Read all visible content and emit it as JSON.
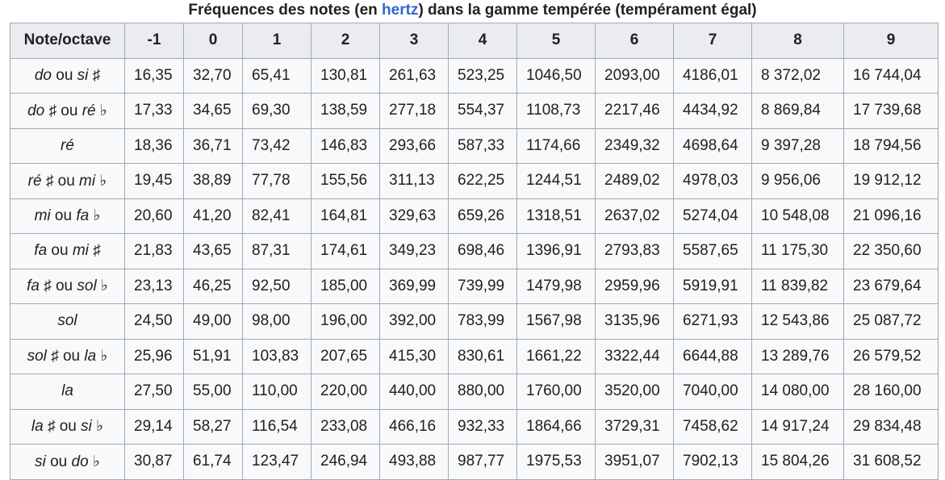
{
  "caption": {
    "before": "Fréquences des notes (en ",
    "link": "hertz",
    "after": ") dans la gamme tempérée (tempérament égal)"
  },
  "headers": [
    "Note/octave",
    "-1",
    "0",
    "1",
    "2",
    "3",
    "4",
    "5",
    "6",
    "7",
    "8",
    "9"
  ],
  "rows": [
    {
      "note": [
        {
          "t": "do",
          "i": true
        },
        {
          "t": " ou ",
          "i": false
        },
        {
          "t": "si ♯",
          "i": true
        }
      ],
      "values": [
        "16,35",
        "32,70",
        "65,41",
        "130,81",
        "261,63",
        "523,25",
        "1046,50",
        "2093,00",
        "4186,01",
        "8 372,02",
        "16 744,04"
      ]
    },
    {
      "note": [
        {
          "t": "do ♯",
          "i": true
        },
        {
          "t": " ou ",
          "i": false
        },
        {
          "t": "ré ♭",
          "i": true
        }
      ],
      "values": [
        "17,33",
        "34,65",
        "69,30",
        "138,59",
        "277,18",
        "554,37",
        "1108,73",
        "2217,46",
        "4434,92",
        "8 869,84",
        "17 739,68"
      ]
    },
    {
      "note": [
        {
          "t": "ré",
          "i": true
        }
      ],
      "values": [
        "18,36",
        "36,71",
        "73,42",
        "146,83",
        "293,66",
        "587,33",
        "1174,66",
        "2349,32",
        "4698,64",
        "9 397,28",
        "18 794,56"
      ]
    },
    {
      "note": [
        {
          "t": "ré ♯",
          "i": true
        },
        {
          "t": " ou ",
          "i": false
        },
        {
          "t": "mi ♭",
          "i": true
        }
      ],
      "values": [
        "19,45",
        "38,89",
        "77,78",
        "155,56",
        "311,13",
        "622,25",
        "1244,51",
        "2489,02",
        "4978,03",
        "9 956,06",
        "19 912,12"
      ]
    },
    {
      "note": [
        {
          "t": "mi",
          "i": true
        },
        {
          "t": " ou ",
          "i": false
        },
        {
          "t": "fa ♭",
          "i": true
        }
      ],
      "values": [
        "20,60",
        "41,20",
        "82,41",
        "164,81",
        "329,63",
        "659,26",
        "1318,51",
        "2637,02",
        "5274,04",
        "10 548,08",
        "21 096,16"
      ]
    },
    {
      "note": [
        {
          "t": "fa",
          "i": true
        },
        {
          "t": " ou ",
          "i": false
        },
        {
          "t": "mi ♯",
          "i": true
        }
      ],
      "values": [
        "21,83",
        "43,65",
        "87,31",
        "174,61",
        "349,23",
        "698,46",
        "1396,91",
        "2793,83",
        "5587,65",
        "11 175,30",
        "22 350,60"
      ]
    },
    {
      "note": [
        {
          "t": "fa ♯",
          "i": true
        },
        {
          "t": " ou ",
          "i": false
        },
        {
          "t": "sol ♭",
          "i": true
        }
      ],
      "values": [
        "23,13",
        "46,25",
        "92,50",
        "185,00",
        "369,99",
        "739,99",
        "1479,98",
        "2959,96",
        "5919,91",
        "11 839,82",
        "23 679,64"
      ]
    },
    {
      "note": [
        {
          "t": "sol",
          "i": true
        }
      ],
      "values": [
        "24,50",
        "49,00",
        "98,00",
        "196,00",
        "392,00",
        "783,99",
        "1567,98",
        "3135,96",
        "6271,93",
        "12 543,86",
        "25 087,72"
      ]
    },
    {
      "note": [
        {
          "t": "sol ♯",
          "i": true
        },
        {
          "t": " ou ",
          "i": false
        },
        {
          "t": "la ♭",
          "i": true
        }
      ],
      "values": [
        "25,96",
        "51,91",
        "103,83",
        "207,65",
        "415,30",
        "830,61",
        "1661,22",
        "3322,44",
        "6644,88",
        "13 289,76",
        "26 579,52"
      ]
    },
    {
      "note": [
        {
          "t": "la",
          "i": true
        }
      ],
      "values": [
        "27,50",
        "55,00",
        "110,00",
        "220,00",
        "440,00",
        "880,00",
        "1760,00",
        "3520,00",
        "7040,00",
        "14 080,00",
        "28 160,00"
      ]
    },
    {
      "note": [
        {
          "t": "la ♯",
          "i": true
        },
        {
          "t": " ou ",
          "i": false
        },
        {
          "t": "si ♭",
          "i": true
        }
      ],
      "values": [
        "29,14",
        "58,27",
        "116,54",
        "233,08",
        "466,16",
        "932,33",
        "1864,66",
        "3729,31",
        "7458,62",
        "14 917,24",
        "29 834,48"
      ]
    },
    {
      "note": [
        {
          "t": "si",
          "i": true
        },
        {
          "t": " ou ",
          "i": false
        },
        {
          "t": "do ♭",
          "i": true
        }
      ],
      "values": [
        "30,87",
        "61,74",
        "123,47",
        "246,94",
        "493,88",
        "987,77",
        "1975,53",
        "3951,07",
        "7902,13",
        "15 804,26",
        "31 608,52"
      ]
    }
  ]
}
